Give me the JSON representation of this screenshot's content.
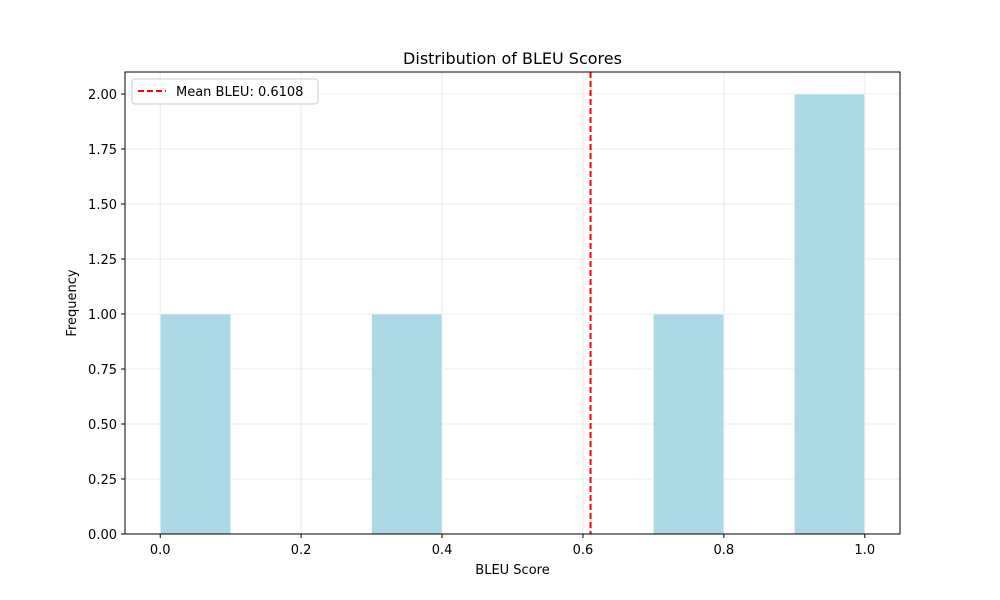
{
  "chart_data": {
    "type": "bar",
    "title": "Distribution of BLEU Scores",
    "xlabel": "BLEU Score",
    "ylabel": "Frequency",
    "xlim": [
      -0.05,
      1.05
    ],
    "ylim": [
      0,
      2.1
    ],
    "xticks": [
      0.0,
      0.2,
      0.4,
      0.6,
      0.8,
      1.0
    ],
    "xtick_labels": [
      "0.0",
      "0.2",
      "0.4",
      "0.6",
      "0.8",
      "1.0"
    ],
    "yticks": [
      0.0,
      0.25,
      0.5,
      0.75,
      1.0,
      1.25,
      1.5,
      1.75,
      2.0
    ],
    "ytick_labels": [
      "0.00",
      "0.25",
      "0.50",
      "0.75",
      "1.00",
      "1.25",
      "1.50",
      "1.75",
      "2.00"
    ],
    "grid": true,
    "bins": [
      {
        "start": 0.0,
        "end": 0.1,
        "count": 1
      },
      {
        "start": 0.1,
        "end": 0.2,
        "count": 0
      },
      {
        "start": 0.2,
        "end": 0.3,
        "count": 0
      },
      {
        "start": 0.3,
        "end": 0.4,
        "count": 1
      },
      {
        "start": 0.4,
        "end": 0.5,
        "count": 0
      },
      {
        "start": 0.5,
        "end": 0.6,
        "count": 0
      },
      {
        "start": 0.6,
        "end": 0.7,
        "count": 0
      },
      {
        "start": 0.7,
        "end": 0.8,
        "count": 1
      },
      {
        "start": 0.8,
        "end": 0.9,
        "count": 0
      },
      {
        "start": 0.9,
        "end": 1.0,
        "count": 2
      }
    ],
    "bar_color": "#add8e6",
    "mean_line": {
      "value": 0.6108,
      "label": "Mean BLEU: 0.6108",
      "color": "#ff0000",
      "style": "dashed"
    },
    "legend_position": "upper-left"
  }
}
